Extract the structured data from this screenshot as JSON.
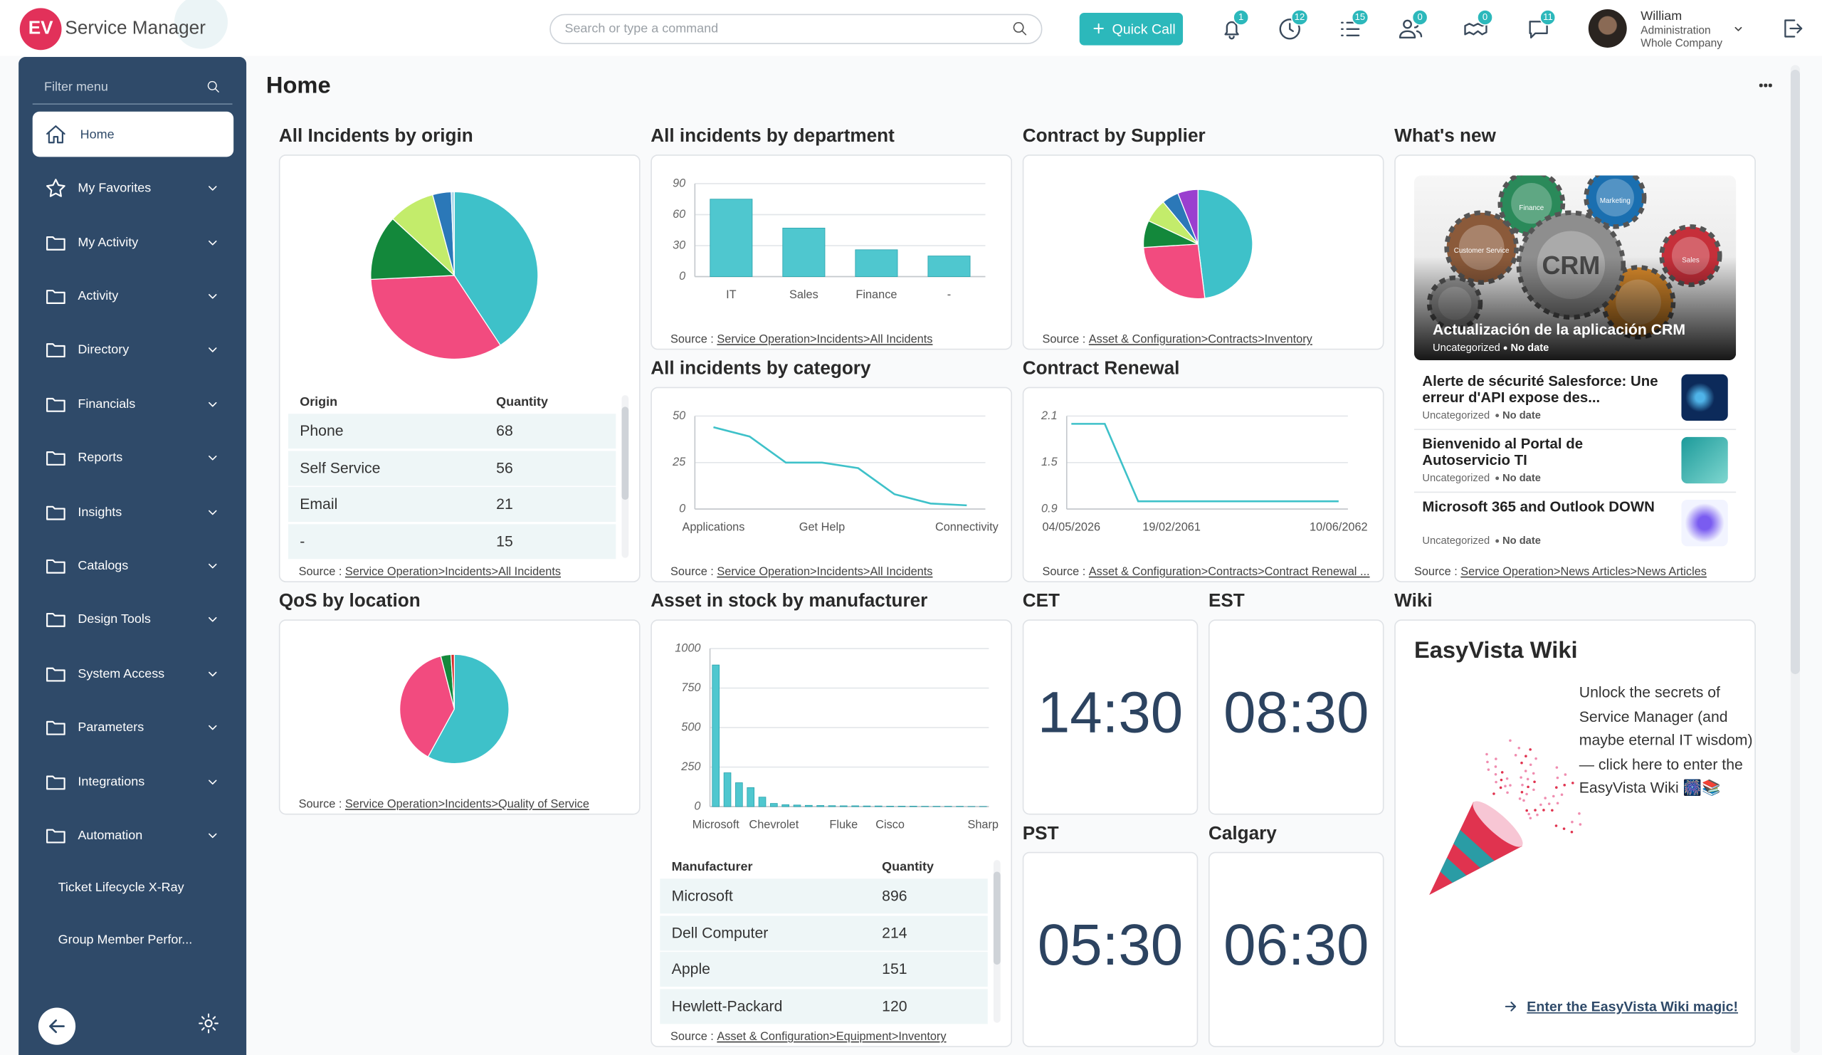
{
  "header": {
    "logo": "EV",
    "app_name": "Service Manager",
    "search_placeholder": "Search or type a command",
    "quick_call": "Quick Call",
    "badges": [
      1,
      12,
      15,
      0,
      0,
      11
    ],
    "user": {
      "name": "William",
      "role": "Administration",
      "company": "Whole Company"
    }
  },
  "sidebar": {
    "filter_placeholder": "Filter menu",
    "items": [
      "Home",
      "My Favorites",
      "My Activity",
      "Activity",
      "Directory",
      "Financials",
      "Reports",
      "Insights",
      "Catalogs",
      "Design Tools",
      "System Access",
      "Parameters",
      "Integrations",
      "Automation",
      "Ticket Lifecycle X-Ray",
      "Group Member Perfor..."
    ]
  },
  "page": {
    "title": "Home"
  },
  "source_prefix": "Source :",
  "incidents_by_origin": {
    "title": "All Incidents by origin",
    "chart": {
      "type": "pie",
      "values": [
        68,
        56,
        21,
        15,
        6,
        1
      ],
      "colors": [
        "#3ec1c9",
        "#f24b7f",
        "#13883b",
        "#c3ec6b",
        "#2b78b8",
        "#a9d9ec"
      ]
    },
    "table": {
      "columns": [
        "Origin",
        "Quantity"
      ],
      "rows": [
        [
          "Phone",
          68
        ],
        [
          "Self Service",
          56
        ],
        [
          "Email",
          21
        ],
        [
          "-",
          15
        ]
      ]
    },
    "source": "Service Operation>Incidents>All Incidents"
  },
  "incidents_by_department": {
    "title": "All incidents by department",
    "chart": {
      "type": "bar",
      "categories": [
        "IT",
        "Sales",
        "Finance",
        "-"
      ],
      "values": [
        75,
        47,
        26,
        20
      ],
      "color": "#4fc7cf",
      "ylim": [
        0,
        90
      ],
      "yticks": [
        0,
        30,
        60,
        90
      ],
      "grid": true
    },
    "source": "Service Operation>Incidents>All Incidents"
  },
  "contract_by_supplier": {
    "title": "Contract by Supplier",
    "chart": {
      "type": "pie",
      "values": [
        48,
        26,
        8,
        7,
        5,
        6
      ],
      "colors": [
        "#3ec1c9",
        "#f24b7f",
        "#13883b",
        "#c3ec6b",
        "#2b78b8",
        "#9a3fcf"
      ]
    },
    "source": "Asset & Configuration>Contracts>Inventory"
  },
  "whats_new": {
    "title": "What's new",
    "featured": {
      "image_labels": [
        "CRM",
        "Finance",
        "Marketing",
        "Customer Service",
        "Sales"
      ],
      "title": "Actualización de la aplicación CRM",
      "category": "Uncategorized",
      "date": "No date"
    },
    "articles": [
      {
        "title": "Alerte de sécurité Salesforce: Une erreur d'API expose des...",
        "category": "Uncategorized",
        "date": "No date"
      },
      {
        "title": "Bienvenido al Portal de Autoservicio TI",
        "category": "Uncategorized",
        "date": "No date"
      },
      {
        "title": "Microsoft 365 and Outlook DOWN",
        "category": "Uncategorized",
        "date": "No date"
      }
    ],
    "source": "Service Operation>News Articles>News Articles"
  },
  "incidents_by_category": {
    "title": "All incidents by category",
    "chart": {
      "type": "line",
      "categories": [
        "Applications",
        null,
        null,
        "Get Help",
        null,
        null,
        null,
        "Connectivity"
      ],
      "values": [
        44,
        39,
        25,
        25,
        22,
        8,
        3,
        2
      ],
      "color": "#3ec1c9",
      "ylim": [
        0,
        50
      ],
      "yticks": [
        0,
        25,
        50
      ],
      "grid": true
    },
    "source": "Service Operation>Incidents>All Incidents"
  },
  "contract_renewal": {
    "title": "Contract Renewal",
    "chart": {
      "type": "line",
      "categories": [
        "04/05/2026",
        null,
        null,
        "19/02/2061",
        null,
        null,
        null,
        null,
        "10/06/2062"
      ],
      "values": [
        2,
        2,
        1,
        1,
        1,
        1,
        1,
        1,
        1
      ],
      "color": "#3ec1c9",
      "ylim": [
        0.9,
        2.1
      ],
      "yticks": [
        0.9,
        1.5,
        2.1
      ],
      "grid": true
    },
    "source": "Asset & Configuration>Contracts>Contract Renewal ..."
  },
  "qos_by_location": {
    "title": "QoS by location",
    "chart": {
      "type": "pie",
      "values": [
        58,
        38,
        3,
        1
      ],
      "colors": [
        "#3ec1c9",
        "#f24b7f",
        "#13883b",
        "#d62b2b"
      ]
    },
    "source": "Service Operation>Incidents>Quality of Service"
  },
  "asset_by_manufacturer": {
    "title": "Asset in stock by manufacturer",
    "chart": {
      "type": "bar",
      "categories": [
        "Microsoft",
        null,
        null,
        null,
        null,
        "Chevrolet",
        null,
        null,
        null,
        null,
        null,
        "Fluke",
        null,
        null,
        null,
        "Cisco",
        null,
        null,
        null,
        null,
        null,
        null,
        null,
        "Sharp"
      ],
      "values": [
        896,
        214,
        151,
        120,
        60,
        20,
        12,
        10,
        8,
        7,
        6,
        5,
        5,
        4,
        4,
        3,
        3,
        3,
        2,
        2,
        2,
        2,
        1,
        1
      ],
      "color": "#4fc7cf",
      "ylim": [
        0,
        1000
      ],
      "yticks": [
        0,
        250,
        500,
        750,
        1000
      ],
      "grid": true
    },
    "table": {
      "columns": [
        "Manufacturer",
        "Quantity"
      ],
      "rows": [
        [
          "Microsoft",
          896
        ],
        [
          "Dell Computer",
          214
        ],
        [
          "Apple",
          151
        ],
        [
          "Hewlett-Packard",
          120
        ]
      ]
    },
    "source": "Asset & Configuration>Equipment>Inventory"
  },
  "clocks": [
    {
      "zone": "CET",
      "time": "14:30"
    },
    {
      "zone": "EST",
      "time": "08:30"
    },
    {
      "zone": "PST",
      "time": "05:30"
    },
    {
      "zone": "Calgary",
      "time": "06:30"
    }
  ],
  "wiki": {
    "title": "Wiki",
    "heading": "EasyVista Wiki",
    "text": "Unlock the secrets of Service Manager (and maybe eternal IT wisdom) — click here to enter the EasyVista Wiki 🎆📚",
    "link": "Enter the EasyVista Wiki magic!"
  }
}
